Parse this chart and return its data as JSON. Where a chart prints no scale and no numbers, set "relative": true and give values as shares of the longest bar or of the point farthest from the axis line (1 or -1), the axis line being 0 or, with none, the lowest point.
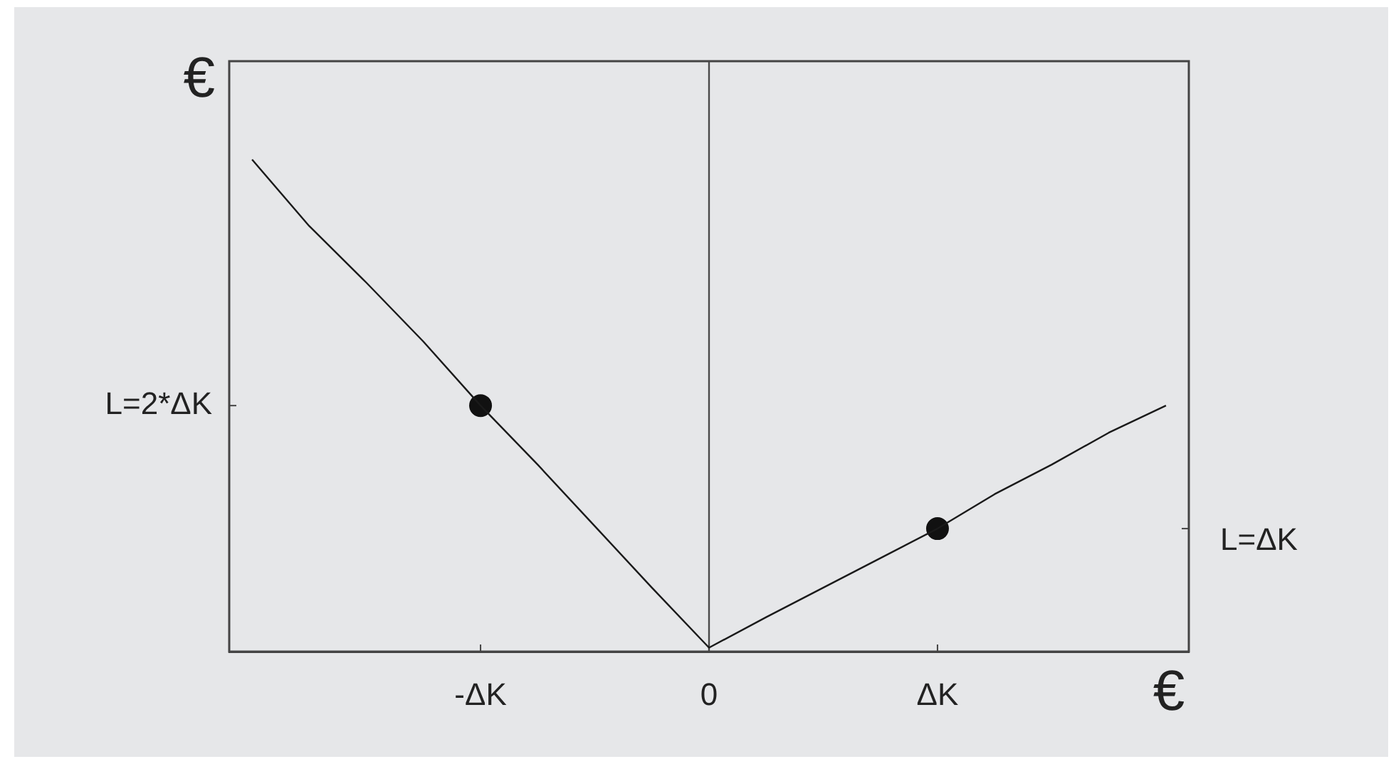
{
  "chart_data": {
    "type": "line",
    "xlabel": "€",
    "ylabel": "€",
    "relative": true,
    "categories": [
      null,
      null,
      null,
      null,
      "-ΔK",
      null,
      null,
      null,
      "0",
      null,
      null,
      null,
      "ΔK",
      null,
      null,
      null,
      null
    ],
    "annotations": [
      "L=2*ΔK",
      "L=ΔK"
    ],
    "ref_lines": [
      {
        "axis": "x",
        "value": "0",
        "color": "#4a4a4a"
      }
    ],
    "grid": false,
    "legend": false,
    "marker": "none",
    "line_style": "solid",
    "series": [
      {
        "values": [
          1,
          0.865,
          0.75,
          0.63,
          0.5,
          0.38,
          0.255,
          0.13,
          0.008,
          0.07,
          0.13,
          0.19,
          0.25,
          0.32,
          0.38,
          0.445,
          0.5
        ],
        "color": "#1a1a1a"
      },
      {
        "type": "scatter",
        "marker": "circle",
        "x": [
          "-ΔK",
          "ΔK"
        ],
        "values": [
          0.5,
          0.25
        ],
        "color": "#111111"
      }
    ]
  }
}
